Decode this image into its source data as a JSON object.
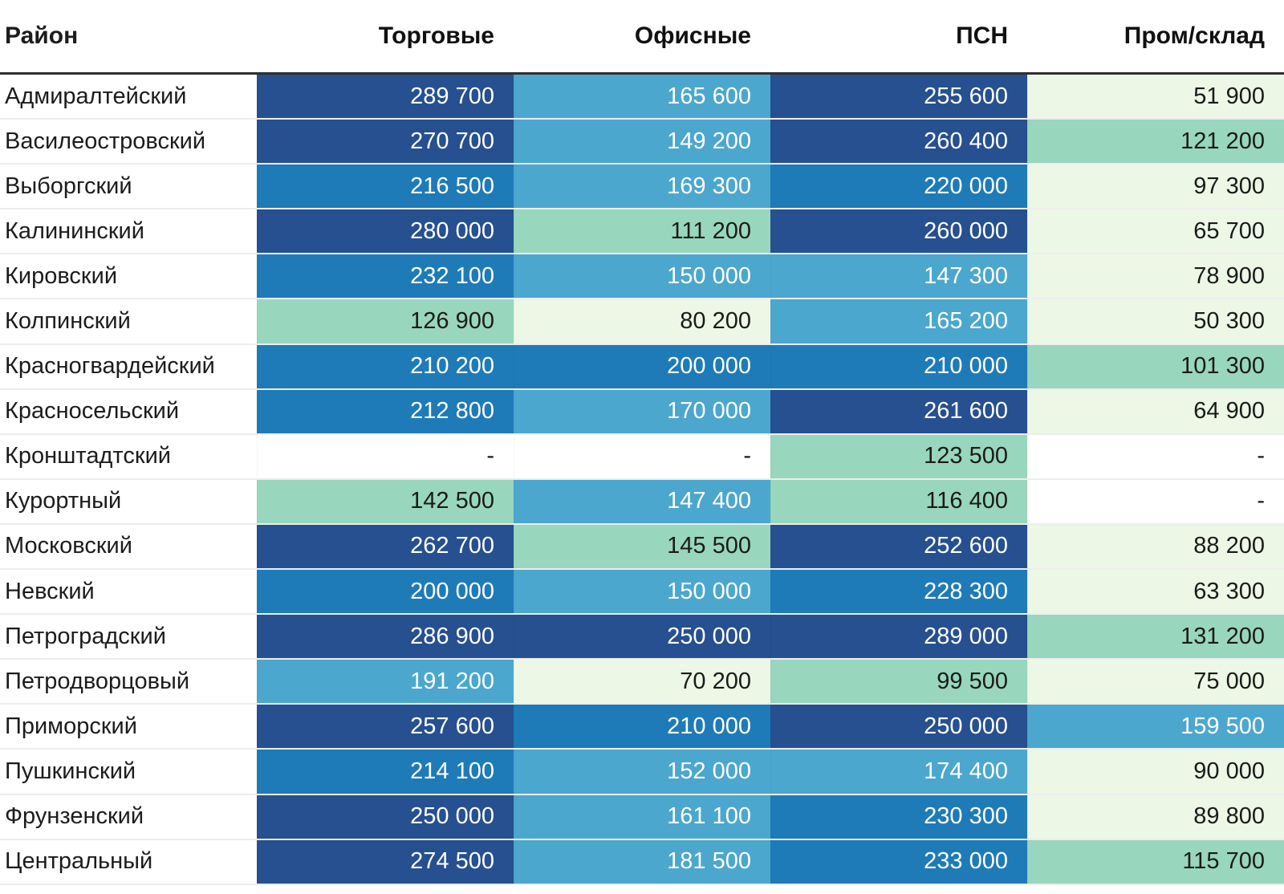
{
  "table": {
    "columns": [
      {
        "label": "Район"
      },
      {
        "label": "Торговые"
      },
      {
        "label": "Офисные"
      },
      {
        "label": "ПСН"
      },
      {
        "label": "Пром/склад"
      }
    ],
    "missing_placeholder": "-",
    "palette": {
      "db": {
        "bg": "#26508f",
        "text": "#ffffff"
      },
      "mb": {
        "bg": "#1e7bb8",
        "text": "#ffffff"
      },
      "lb": {
        "bg": "#4ca7ce",
        "text": "#ffffff"
      },
      "tg": {
        "bg": "#98d6bd",
        "text": "#1a1a1a"
      },
      "pg": {
        "bg": "#edf7e6",
        "text": "#1a1a1a"
      },
      "none": {
        "bg": "#ffffff",
        "text": "#1a1a1a"
      }
    },
    "rows": [
      {
        "district": "Адмиралтейский",
        "cells": [
          {
            "value": "289 700",
            "level": "db"
          },
          {
            "value": "165 600",
            "level": "lb"
          },
          {
            "value": "255 600",
            "level": "db"
          },
          {
            "value": "51 900",
            "level": "pg"
          }
        ]
      },
      {
        "district": "Василеостровский",
        "cells": [
          {
            "value": "270 700",
            "level": "db"
          },
          {
            "value": "149 200",
            "level": "lb"
          },
          {
            "value": "260 400",
            "level": "db"
          },
          {
            "value": "121 200",
            "level": "tg"
          }
        ]
      },
      {
        "district": "Выборгский",
        "cells": [
          {
            "value": "216 500",
            "level": "mb"
          },
          {
            "value": "169 300",
            "level": "lb"
          },
          {
            "value": "220 000",
            "level": "mb"
          },
          {
            "value": "97 300",
            "level": "pg"
          }
        ]
      },
      {
        "district": "Калининский",
        "cells": [
          {
            "value": "280 000",
            "level": "db"
          },
          {
            "value": "111 200",
            "level": "tg"
          },
          {
            "value": "260 000",
            "level": "db"
          },
          {
            "value": "65 700",
            "level": "pg"
          }
        ]
      },
      {
        "district": "Кировский",
        "cells": [
          {
            "value": "232 100",
            "level": "mb"
          },
          {
            "value": "150 000",
            "level": "lb"
          },
          {
            "value": "147 300",
            "level": "lb"
          },
          {
            "value": "78 900",
            "level": "pg"
          }
        ]
      },
      {
        "district": "Колпинский",
        "cells": [
          {
            "value": "126 900",
            "level": "tg"
          },
          {
            "value": "80 200",
            "level": "pg"
          },
          {
            "value": "165 200",
            "level": "lb"
          },
          {
            "value": "50 300",
            "level": "pg"
          }
        ]
      },
      {
        "district": "Красногвардейский",
        "cells": [
          {
            "value": "210 200",
            "level": "mb"
          },
          {
            "value": "200 000",
            "level": "mb"
          },
          {
            "value": "210 000",
            "level": "mb"
          },
          {
            "value": "101 300",
            "level": "tg"
          }
        ]
      },
      {
        "district": "Красносельский",
        "cells": [
          {
            "value": "212 800",
            "level": "mb"
          },
          {
            "value": "170 000",
            "level": "lb"
          },
          {
            "value": "261 600",
            "level": "db"
          },
          {
            "value": "64 900",
            "level": "pg"
          }
        ]
      },
      {
        "district": "Кронштадтский",
        "cells": [
          {
            "value": "-",
            "level": "none"
          },
          {
            "value": "-",
            "level": "none"
          },
          {
            "value": "123 500",
            "level": "tg"
          },
          {
            "value": "-",
            "level": "none"
          }
        ]
      },
      {
        "district": "Курортный",
        "cells": [
          {
            "value": "142 500",
            "level": "tg"
          },
          {
            "value": "147 400",
            "level": "lb"
          },
          {
            "value": "116 400",
            "level": "tg"
          },
          {
            "value": "-",
            "level": "none"
          }
        ]
      },
      {
        "district": "Московский",
        "cells": [
          {
            "value": "262 700",
            "level": "db"
          },
          {
            "value": "145 500",
            "level": "tg"
          },
          {
            "value": "252 600",
            "level": "db"
          },
          {
            "value": "88 200",
            "level": "pg"
          }
        ]
      },
      {
        "district": "Невский",
        "cells": [
          {
            "value": "200 000",
            "level": "mb"
          },
          {
            "value": "150 000",
            "level": "lb"
          },
          {
            "value": "228 300",
            "level": "mb"
          },
          {
            "value": "63 300",
            "level": "pg"
          }
        ]
      },
      {
        "district": "Петроградский",
        "cells": [
          {
            "value": "286 900",
            "level": "db"
          },
          {
            "value": "250 000",
            "level": "db"
          },
          {
            "value": "289 000",
            "level": "db"
          },
          {
            "value": "131 200",
            "level": "tg"
          }
        ]
      },
      {
        "district": "Петродворцовый",
        "cells": [
          {
            "value": "191 200",
            "level": "lb"
          },
          {
            "value": "70 200",
            "level": "pg"
          },
          {
            "value": "99 500",
            "level": "tg"
          },
          {
            "value": "75 000",
            "level": "pg"
          }
        ]
      },
      {
        "district": "Приморский",
        "cells": [
          {
            "value": "257 600",
            "level": "db"
          },
          {
            "value": "210 000",
            "level": "mb"
          },
          {
            "value": "250 000",
            "level": "db"
          },
          {
            "value": "159 500",
            "level": "lb"
          }
        ]
      },
      {
        "district": "Пушкинский",
        "cells": [
          {
            "value": "214 100",
            "level": "mb"
          },
          {
            "value": "152 000",
            "level": "lb"
          },
          {
            "value": "174 400",
            "level": "lb"
          },
          {
            "value": "90 000",
            "level": "pg"
          }
        ]
      },
      {
        "district": "Фрунзенский",
        "cells": [
          {
            "value": "250 000",
            "level": "db"
          },
          {
            "value": "161 100",
            "level": "lb"
          },
          {
            "value": "230 300",
            "level": "mb"
          },
          {
            "value": "89 800",
            "level": "pg"
          }
        ]
      },
      {
        "district": "Центральный",
        "cells": [
          {
            "value": "274 500",
            "level": "db"
          },
          {
            "value": "181 500",
            "level": "lb"
          },
          {
            "value": "233 000",
            "level": "mb"
          },
          {
            "value": "115 700",
            "level": "tg"
          }
        ]
      }
    ]
  },
  "chart_data": {
    "type": "heatmap",
    "title": "",
    "rows": [
      "Адмиралтейский",
      "Василеостровский",
      "Выборгский",
      "Калининский",
      "Кировский",
      "Колпинский",
      "Красногвардейский",
      "Красносельский",
      "Кронштадтский",
      "Курортный",
      "Московский",
      "Невский",
      "Петроградский",
      "Петродворцовый",
      "Приморский",
      "Пушкинский",
      "Фрунзенский",
      "Центральный"
    ],
    "columns": [
      "Торговые",
      "Офисные",
      "ПСН",
      "Пром/склад"
    ],
    "values": [
      [
        289700,
        165600,
        255600,
        51900
      ],
      [
        270700,
        149200,
        260400,
        121200
      ],
      [
        216500,
        169300,
        220000,
        97300
      ],
      [
        280000,
        111200,
        260000,
        65700
      ],
      [
        232100,
        150000,
        147300,
        78900
      ],
      [
        126900,
        80200,
        165200,
        50300
      ],
      [
        210200,
        200000,
        210000,
        101300
      ],
      [
        212800,
        170000,
        261600,
        64900
      ],
      [
        null,
        null,
        123500,
        null
      ],
      [
        142500,
        147400,
        116400,
        null
      ],
      [
        262700,
        145500,
        252600,
        88200
      ],
      [
        200000,
        150000,
        228300,
        63300
      ],
      [
        286900,
        250000,
        289000,
        131200
      ],
      [
        191200,
        70200,
        99500,
        75000
      ],
      [
        257600,
        210000,
        250000,
        159500
      ],
      [
        214100,
        152000,
        174400,
        90000
      ],
      [
        250000,
        161100,
        230300,
        89800
      ],
      [
        274500,
        181500,
        233000,
        115700
      ]
    ],
    "legend": "none",
    "color_scale_low_to_high": [
      "#edf7e6",
      "#98d6bd",
      "#4ca7ce",
      "#1e7bb8",
      "#26508f"
    ]
  }
}
